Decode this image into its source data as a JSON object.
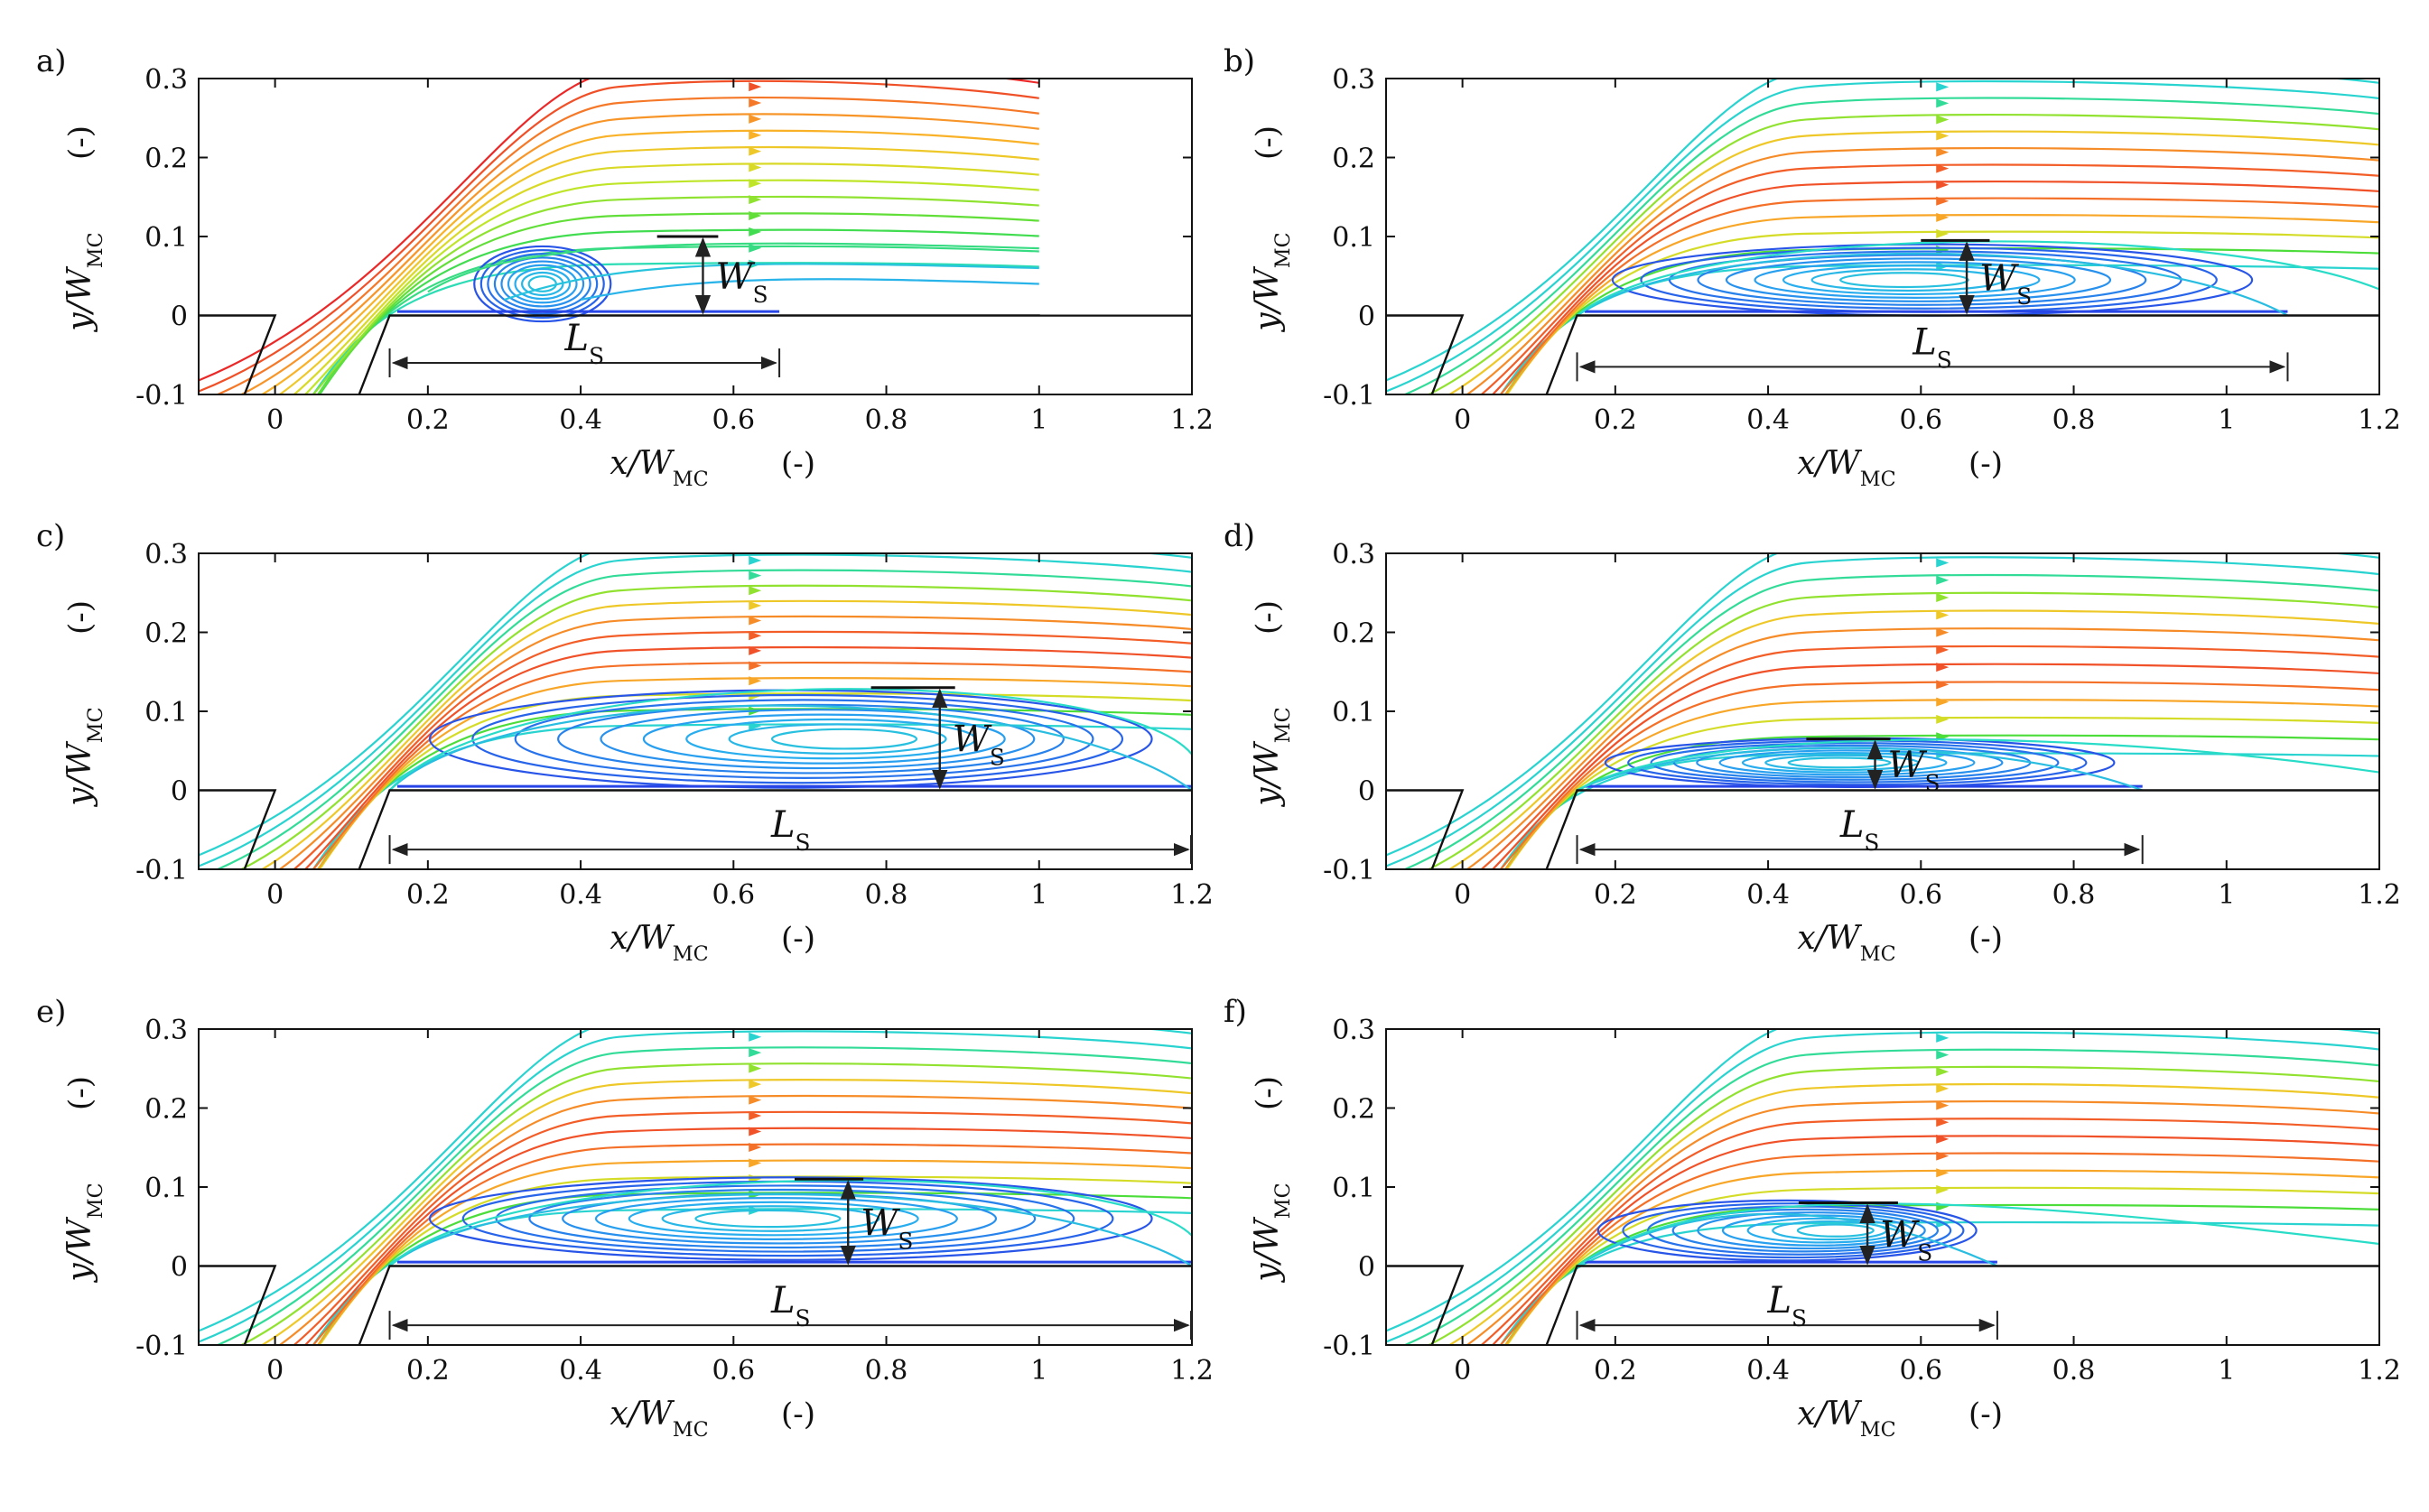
{
  "figure": {
    "x_unit_label": "(-)",
    "y_unit_label": "(-)",
    "xlabel_main": "x/W",
    "xlabel_sub": "MC",
    "ylabel_main": "y/W",
    "ylabel_sub": "MC",
    "separation_length_label": "L",
    "separation_length_sub": "S",
    "separation_width_label": "W",
    "separation_width_sub": "S"
  },
  "chart_data": [
    {
      "type": "streamline",
      "panel_label": "a)",
      "xlim": [
        -0.1,
        1.2
      ],
      "ylim": [
        -0.1,
        0.3
      ],
      "x_ticks": [
        "0",
        "0.2",
        "0.4",
        "0.6",
        "0.8",
        "1",
        "1.2"
      ],
      "x_tick_values": [
        0,
        0.2,
        0.4,
        0.6,
        0.8,
        1,
        1.2
      ],
      "y_ticks": [
        "-0.1",
        "0",
        "0.1",
        "0.2",
        "0.3"
      ],
      "y_tick_values": [
        -0.1,
        0,
        0.1,
        0.2,
        0.3
      ],
      "domain_end_x": 1.0,
      "separation_length": {
        "x_start": 0.15,
        "x_end": 0.66,
        "y": -0.06
      },
      "separation_width": {
        "x": 0.56,
        "y_top": 0.1,
        "cap_x0": 0.5,
        "cap_x1": 0.58
      },
      "vortex_center": [
        0.35,
        0.04
      ],
      "streamline_family": "narrow-attached"
    },
    {
      "type": "streamline",
      "panel_label": "b)",
      "xlim": [
        -0.1,
        1.2
      ],
      "ylim": [
        -0.1,
        0.3
      ],
      "x_ticks": [
        "0",
        "0.2",
        "0.4",
        "0.6",
        "0.8",
        "1",
        "1.2"
      ],
      "x_tick_values": [
        0,
        0.2,
        0.4,
        0.6,
        0.8,
        1,
        1.2
      ],
      "y_ticks": [
        "-0.1",
        "0",
        "0.1",
        "0.2",
        "0.3"
      ],
      "y_tick_values": [
        -0.1,
        0,
        0.1,
        0.2,
        0.3
      ],
      "domain_end_x": 1.2,
      "separation_length": {
        "x_start": 0.15,
        "x_end": 1.08,
        "y": -0.065
      },
      "separation_width": {
        "x": 0.66,
        "y_top": 0.095,
        "cap_x0": 0.6,
        "cap_x1": 0.69
      },
      "vortex_center": [
        0.56,
        0.045
      ],
      "streamline_family": "bubble"
    },
    {
      "type": "streamline",
      "panel_label": "c)",
      "xlim": [
        -0.1,
        1.2
      ],
      "ylim": [
        -0.1,
        0.3
      ],
      "x_ticks": [
        "0",
        "0.2",
        "0.4",
        "0.6",
        "0.8",
        "1",
        "1.2"
      ],
      "x_tick_values": [
        0,
        0.2,
        0.4,
        0.6,
        0.8,
        1,
        1.2
      ],
      "y_ticks": [
        "-0.1",
        "0",
        "0.1",
        "0.2",
        "0.3"
      ],
      "y_tick_values": [
        -0.1,
        0,
        0.1,
        0.2,
        0.3
      ],
      "domain_end_x": 1.2,
      "separation_length": {
        "x_start": 0.15,
        "x_end": 1.2,
        "y": -0.075
      },
      "separation_width": {
        "x": 0.87,
        "y_top": 0.13,
        "cap_x0": 0.78,
        "cap_x1": 0.89
      },
      "vortex_center": [
        0.78,
        0.065
      ],
      "streamline_family": "bubble"
    },
    {
      "type": "streamline",
      "panel_label": "d)",
      "xlim": [
        -0.1,
        1.2
      ],
      "ylim": [
        -0.1,
        0.3
      ],
      "x_ticks": [
        "0",
        "0.2",
        "0.4",
        "0.6",
        "0.8",
        "1",
        "1.2"
      ],
      "x_tick_values": [
        0,
        0.2,
        0.4,
        0.6,
        0.8,
        1,
        1.2
      ],
      "y_ticks": [
        "-0.1",
        "0",
        "0.1",
        "0.2",
        "0.3"
      ],
      "y_tick_values": [
        -0.1,
        0,
        0.1,
        0.2,
        0.3
      ],
      "domain_end_x": 1.2,
      "separation_length": {
        "x_start": 0.15,
        "x_end": 0.89,
        "y": -0.075
      },
      "separation_width": {
        "x": 0.54,
        "y_top": 0.065,
        "cap_x0": 0.45,
        "cap_x1": 0.56
      },
      "vortex_center": [
        0.48,
        0.035
      ],
      "streamline_family": "bubble"
    },
    {
      "type": "streamline",
      "panel_label": "e)",
      "xlim": [
        -0.1,
        1.2
      ],
      "ylim": [
        -0.1,
        0.3
      ],
      "x_ticks": [
        "0",
        "0.2",
        "0.4",
        "0.6",
        "0.8",
        "1",
        "1.2"
      ],
      "x_tick_values": [
        0,
        0.2,
        0.4,
        0.6,
        0.8,
        1,
        1.2
      ],
      "y_ticks": [
        "-0.1",
        "0",
        "0.1",
        "0.2",
        "0.3"
      ],
      "y_tick_values": [
        -0.1,
        0,
        0.1,
        0.2,
        0.3
      ],
      "domain_end_x": 1.2,
      "separation_length": {
        "x_start": 0.15,
        "x_end": 1.2,
        "y": -0.075
      },
      "separation_width": {
        "x": 0.75,
        "y_top": 0.11,
        "cap_x0": 0.68,
        "cap_x1": 0.77
      },
      "vortex_center": [
        0.63,
        0.06
      ],
      "streamline_family": "bubble"
    },
    {
      "type": "streamline",
      "panel_label": "f)",
      "xlim": [
        -0.1,
        1.2
      ],
      "ylim": [
        -0.1,
        0.3
      ],
      "x_ticks": [
        "0",
        "0.2",
        "0.4",
        "0.6",
        "0.8",
        "1",
        "1.2"
      ],
      "x_tick_values": [
        0,
        0.2,
        0.4,
        0.6,
        0.8,
        1,
        1.2
      ],
      "y_ticks": [
        "-0.1",
        "0",
        "0.1",
        "0.2",
        "0.3"
      ],
      "y_tick_values": [
        -0.1,
        0,
        0.1,
        0.2,
        0.3
      ],
      "domain_end_x": 1.2,
      "separation_length": {
        "x_start": 0.15,
        "x_end": 0.7,
        "y": -0.075
      },
      "separation_width": {
        "x": 0.53,
        "y_top": 0.08,
        "cap_x0": 0.44,
        "cap_x1": 0.57
      },
      "vortex_center": [
        0.52,
        0.045
      ],
      "streamline_family": "bubble"
    }
  ]
}
